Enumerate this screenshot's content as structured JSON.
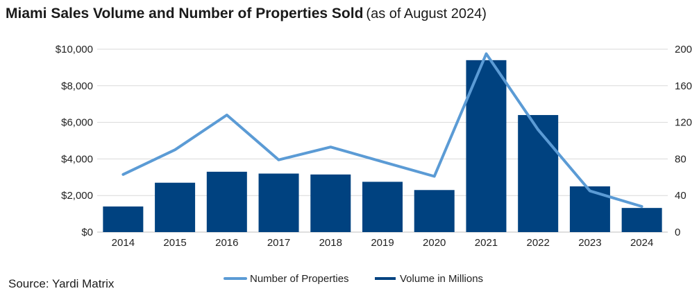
{
  "header": {
    "title": "Miami Sales Volume and Number of Properties Sold",
    "subtitle": "(as of August 2024)"
  },
  "footer": {
    "source": "Source: Yardi Matrix"
  },
  "chart_data": {
    "type": "bar",
    "categories": [
      "2014",
      "2015",
      "2016",
      "2017",
      "2018",
      "2019",
      "2020",
      "2021",
      "2022",
      "2023",
      "2024"
    ],
    "series": [
      {
        "name": "Volume in Millions",
        "type": "bar",
        "axis": "left",
        "color": "#004280",
        "values": [
          1400,
          2700,
          3300,
          3200,
          3150,
          2750,
          2300,
          9400,
          6400,
          2500,
          1320
        ]
      },
      {
        "name": "Number of Properties",
        "type": "line",
        "axis": "right",
        "color": "#5b9bd5",
        "values": [
          63,
          90,
          128,
          79,
          93,
          77,
          61,
          195,
          112,
          45,
          28
        ]
      }
    ],
    "y_left": {
      "ylim": [
        0,
        10000
      ],
      "ticks": [
        0,
        2000,
        4000,
        6000,
        8000,
        10000
      ],
      "tick_labels": [
        "$0",
        "$2,000",
        "$4,000",
        "$6,000",
        "$8,000",
        "$10,000"
      ]
    },
    "y_right": {
      "ylim": [
        0,
        200
      ],
      "ticks": [
        0,
        40,
        80,
        120,
        160,
        200
      ],
      "tick_labels": [
        "0",
        "40",
        "80",
        "120",
        "160",
        "200"
      ]
    },
    "grid": true,
    "legend_position": "bottom"
  }
}
